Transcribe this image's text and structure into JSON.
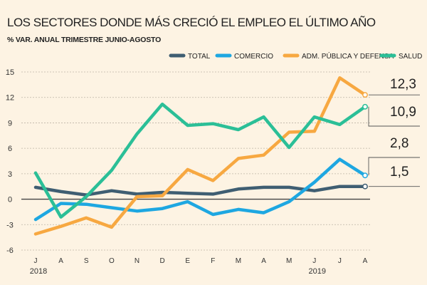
{
  "title": "LOS SECTORES DONDE MÁS CRECIÓ EL EMPLEO EL ÚLTIMO AÑO",
  "subtitle": "% VAR. ANUAL TRIMESTRE JUNIO-AGOSTO",
  "chart_data": {
    "type": "line",
    "title": "LOS SECTORES DONDE MÁS CRECIÓ EL EMPLEO EL ÚLTIMO AÑO",
    "subtitle": "% VAR. ANUAL TRIMESTRE JUNIO-AGOSTO",
    "categories": [
      "J",
      "A",
      "S",
      "O",
      "N",
      "D",
      "E",
      "F",
      "M",
      "A",
      "M",
      "J",
      "J",
      "A"
    ],
    "year_labels": [
      {
        "label": "2018",
        "category_index": 0
      },
      {
        "label": "2019",
        "category_index": 11
      }
    ],
    "ylim": [
      -6,
      15
    ],
    "yticks": [
      -6,
      -3,
      0,
      3,
      6,
      9,
      12,
      15
    ],
    "ytick_labels": [
      "-6",
      "-3",
      "0",
      "3",
      "6",
      "9",
      "12",
      "15"
    ],
    "legend_position": "top",
    "series": [
      {
        "name": "TOTAL",
        "color": "#3f5e72",
        "values": [
          1.4,
          0.9,
          0.5,
          1.0,
          0.6,
          0.8,
          0.7,
          0.6,
          1.2,
          1.4,
          1.4,
          1.0,
          1.5,
          1.5
        ]
      },
      {
        "name": "COMERCIO",
        "color": "#1ea7e1",
        "values": [
          -2.4,
          -0.5,
          -0.6,
          -1.0,
          -1.4,
          -1.1,
          -0.3,
          -1.8,
          -1.2,
          -1.6,
          -0.3,
          2.0,
          4.7,
          2.8
        ]
      },
      {
        "name": "ADM. PÚBLICA Y DEFENSA",
        "color": "#f7a841",
        "values": [
          -4.1,
          -3.2,
          -2.2,
          -3.3,
          0.3,
          0.4,
          3.5,
          2.2,
          4.8,
          5.2,
          7.9,
          8.0,
          14.3,
          12.3
        ]
      },
      {
        "name": "SALUD",
        "color": "#2bbf97",
        "values": [
          3.1,
          -2.1,
          0.3,
          3.4,
          7.7,
          11.2,
          8.7,
          8.9,
          8.2,
          9.7,
          6.1,
          9.7,
          8.8,
          10.9
        ]
      }
    ],
    "annotations": [
      {
        "label": "12,3",
        "series": "ADM. PÚBLICA Y DEFENSA",
        "value": 12.3
      },
      {
        "label": "10,9",
        "series": "SALUD",
        "value": 10.9
      },
      {
        "label": "2,8",
        "series": "COMERCIO",
        "value": 2.8
      },
      {
        "label": "1,5",
        "series": "TOTAL",
        "value": 1.5
      }
    ]
  }
}
